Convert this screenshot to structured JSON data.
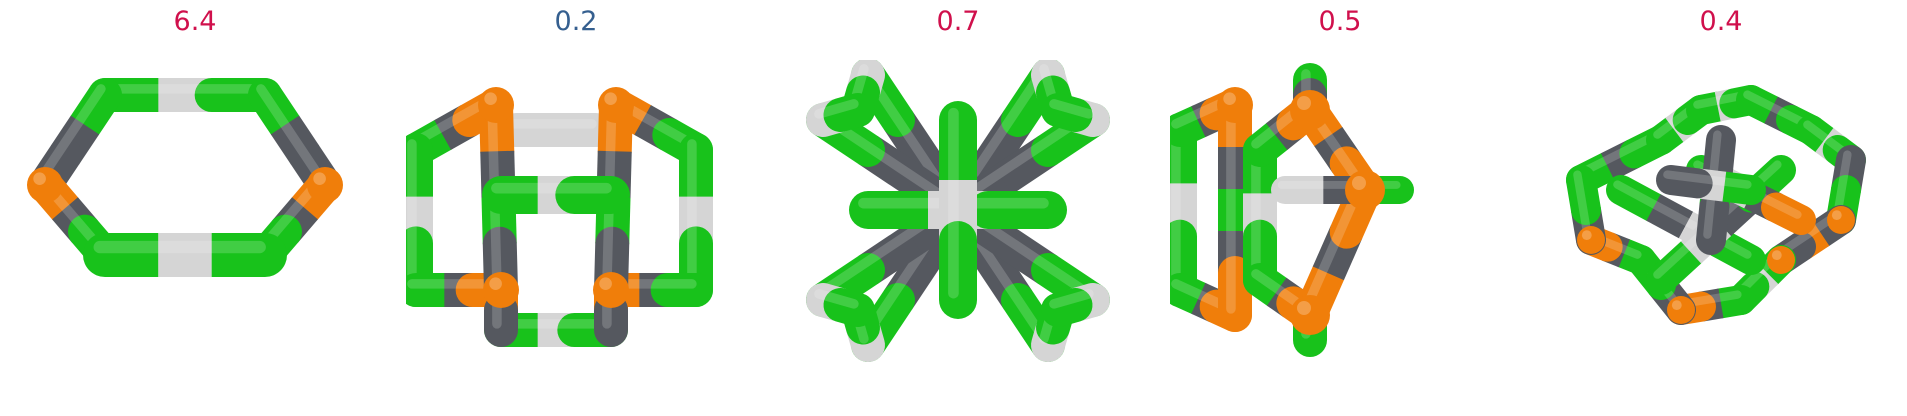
{
  "panels": [
    {
      "value": "6.4",
      "label_color": "#d0104c"
    },
    {
      "value": "0.2",
      "label_color": "#355f8f"
    },
    {
      "value": "0.7",
      "label_color": "#d0104c"
    },
    {
      "value": "0.5",
      "label_color": "#d0104c"
    },
    {
      "value": "0.4",
      "label_color": "#d0104c"
    }
  ],
  "colors": {
    "green": "#18c21b",
    "white": "#d5d5d5",
    "gray": "#55585f",
    "orange": "#f07e0a",
    "background": "#ffffff"
  }
}
